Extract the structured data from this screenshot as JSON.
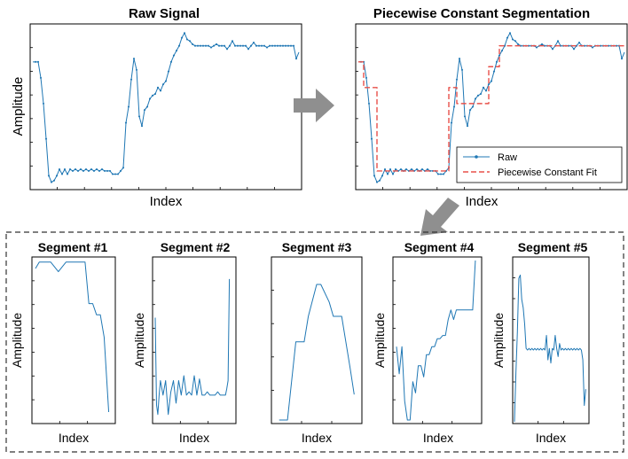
{
  "chart_data": [
    {
      "type": "line",
      "title": "Raw Signal",
      "xlabel": "Index",
      "ylabel": "Amplitude",
      "xlim": [
        0,
        100
      ],
      "ylim": [
        0,
        100
      ],
      "grid": false,
      "series": [
        {
          "marker": "dot",
          "color": "#1f77b4",
          "x": [
            0,
            1,
            2,
            3,
            4,
            5,
            6,
            7,
            8,
            9,
            10,
            11,
            12,
            13,
            14,
            15,
            16,
            17,
            18,
            19,
            20,
            21,
            22,
            23,
            24,
            25,
            26,
            27,
            28,
            29,
            30,
            31,
            32,
            33,
            34,
            35,
            36,
            37,
            38,
            39,
            40,
            41,
            42,
            43,
            44,
            45,
            46,
            47,
            48,
            49,
            50,
            51,
            52,
            53,
            54,
            55,
            56,
            57,
            58,
            59,
            60,
            61,
            62,
            63,
            64,
            65,
            66,
            67,
            68,
            69,
            70,
            71,
            72,
            73,
            74,
            75,
            76,
            77,
            78,
            79,
            80,
            81,
            82,
            83,
            84,
            85,
            86,
            87,
            88,
            89,
            90,
            91,
            92,
            93,
            94,
            95,
            96,
            97,
            98,
            99,
            100
          ],
          "y": [
            78,
            78,
            78,
            68,
            52,
            30,
            7,
            3,
            4,
            7,
            11,
            8,
            11,
            8,
            11,
            10,
            11,
            10,
            11,
            10,
            11,
            10,
            11,
            10,
            11,
            10,
            11,
            10,
            10,
            10,
            8,
            8,
            8,
            10,
            12,
            40,
            50,
            67,
            80,
            73,
            44,
            38,
            48,
            50,
            55,
            57,
            58,
            62,
            60,
            64,
            66,
            72,
            78,
            82,
            85,
            88,
            93,
            96,
            92,
            91,
            89,
            88,
            88,
            88,
            88,
            88,
            88,
            87,
            88,
            89,
            88,
            88,
            88,
            86,
            88,
            91,
            88,
            88,
            88,
            88,
            88,
            86,
            88,
            90,
            88,
            88,
            88,
            88,
            87,
            88,
            88,
            88,
            88,
            88,
            88,
            88,
            88,
            88,
            88,
            80,
            84
          ]
        }
      ]
    },
    {
      "type": "line",
      "title": "Piecewise Constant Segmentation",
      "xlabel": "Index",
      "ylabel": "",
      "xlim": [
        0,
        100
      ],
      "ylim": [
        0,
        100
      ],
      "legend_placement": "bottom-right",
      "series": [
        {
          "name": "Raw",
          "marker": "dot",
          "color": "#1f77b4",
          "x": [
            0,
            1,
            2,
            3,
            4,
            5,
            6,
            7,
            8,
            9,
            10,
            11,
            12,
            13,
            14,
            15,
            16,
            17,
            18,
            19,
            20,
            21,
            22,
            23,
            24,
            25,
            26,
            27,
            28,
            29,
            30,
            31,
            32,
            33,
            34,
            35,
            36,
            37,
            38,
            39,
            40,
            41,
            42,
            43,
            44,
            45,
            46,
            47,
            48,
            49,
            50,
            51,
            52,
            53,
            54,
            55,
            56,
            57,
            58,
            59,
            60,
            61,
            62,
            63,
            64,
            65,
            66,
            67,
            68,
            69,
            70,
            71,
            72,
            73,
            74,
            75,
            76,
            77,
            78,
            79,
            80,
            81,
            82,
            83,
            84,
            85,
            86,
            87,
            88,
            89,
            90,
            91,
            92,
            93,
            94,
            95,
            96,
            97,
            98,
            99,
            100
          ],
          "y": [
            78,
            78,
            78,
            68,
            52,
            30,
            7,
            3,
            4,
            7,
            11,
            8,
            11,
            8,
            11,
            10,
            11,
            10,
            11,
            10,
            11,
            10,
            11,
            10,
            11,
            10,
            11,
            10,
            10,
            10,
            8,
            8,
            8,
            10,
            12,
            40,
            50,
            67,
            80,
            73,
            44,
            38,
            48,
            50,
            55,
            57,
            58,
            62,
            60,
            64,
            66,
            72,
            78,
            82,
            85,
            88,
            93,
            96,
            92,
            91,
            89,
            88,
            88,
            88,
            88,
            88,
            88,
            87,
            88,
            89,
            88,
            88,
            88,
            86,
            88,
            91,
            88,
            88,
            88,
            88,
            88,
            86,
            88,
            90,
            88,
            88,
            88,
            88,
            87,
            88,
            88,
            88,
            88,
            88,
            88,
            88,
            88,
            88,
            88,
            80,
            84
          ]
        },
        {
          "name": "Piecewise Constant Fit",
          "style": "dashed",
          "color": "#e8504a",
          "x": [
            0,
            2,
            2,
            7,
            7,
            34,
            34,
            37,
            37,
            49,
            49,
            53,
            53,
            100
          ],
          "y": [
            78,
            78,
            62,
            62,
            10,
            10,
            62,
            62,
            52,
            52,
            75,
            75,
            88,
            88
          ]
        }
      ]
    },
    {
      "type": "line",
      "title": "Segment #1",
      "xlabel": "Index",
      "ylabel": "Amplitude",
      "xlim": [
        0,
        10
      ],
      "ylim": [
        0,
        100
      ],
      "series": [
        {
          "color": "#1f77b4",
          "x": [
            0,
            0.5,
            1,
            2,
            3,
            4,
            5,
            6,
            6.5,
            7,
            7.5,
            8,
            8.5,
            9,
            9.6
          ],
          "y": [
            95,
            99,
            99,
            99,
            93,
            99,
            99,
            99,
            99,
            73,
            73,
            66,
            66,
            52,
            5
          ]
        }
      ]
    },
    {
      "type": "line",
      "title": "Segment #2",
      "xlabel": "Index",
      "ylabel": "Amplitude",
      "xlim": [
        0,
        30
      ],
      "ylim": [
        0,
        100
      ],
      "series": [
        {
          "color": "#1f77b4",
          "x": [
            0,
            0.5,
            1,
            1.5,
            2,
            3,
            4,
            5,
            6,
            7,
            8,
            9,
            10,
            11,
            12,
            13,
            14,
            15,
            16,
            17,
            18,
            19,
            20,
            21,
            22,
            23,
            24,
            25,
            26,
            27,
            27.5,
            28,
            28.5
          ],
          "y": [
            64,
            10,
            4,
            16,
            25,
            16,
            25,
            4,
            18,
            25,
            11,
            25,
            16,
            28,
            16,
            18,
            16,
            28,
            16,
            26,
            16,
            16,
            18,
            16,
            16,
            16,
            18,
            16,
            16,
            16,
            20,
            25,
            88
          ]
        }
      ]
    },
    {
      "type": "line",
      "title": "Segment #3",
      "xlabel": "Index",
      "ylabel": "",
      "xlim": [
        0,
        10
      ],
      "ylim": [
        0,
        100
      ],
      "series": [
        {
          "color": "#1f77b4",
          "x": [
            0.5,
            1.5,
            2.5,
            3,
            3.5,
            4,
            5,
            5.5,
            6.5,
            7,
            7.5,
            8,
            8.5,
            9,
            9.5
          ],
          "y": [
            0,
            0,
            49,
            49,
            49,
            65,
            85,
            85,
            74,
            65,
            65,
            65,
            49,
            33,
            16
          ]
        }
      ]
    },
    {
      "type": "line",
      "title": "Segment #4",
      "xlabel": "Index",
      "ylabel": "Amplitude",
      "xlim": [
        0,
        30
      ],
      "ylim": [
        0,
        100
      ],
      "series": [
        {
          "color": "#1f77b4",
          "x": [
            0,
            1,
            2,
            3,
            4,
            5,
            6,
            7,
            8,
            9,
            10,
            11,
            12,
            13,
            14,
            15,
            16,
            17,
            18,
            19,
            20,
            21,
            22,
            23,
            24,
            25,
            26,
            27,
            28,
            29
          ],
          "y": [
            46,
            29,
            46,
            12,
            0,
            0,
            24,
            17,
            34,
            34,
            27,
            41,
            41,
            46,
            46,
            51,
            51,
            53,
            53,
            63,
            69,
            63,
            69,
            69,
            69,
            69,
            69,
            69,
            69,
            100
          ]
        }
      ]
    },
    {
      "type": "line",
      "title": "Segment #5",
      "xlabel": "Index",
      "ylabel": "Amplitude",
      "xlim": [
        0,
        50
      ],
      "ylim": [
        0,
        100
      ],
      "series": [
        {
          "color": "#1f77b4",
          "x": [
            0,
            1,
            2,
            3,
            4,
            5,
            6,
            7,
            8,
            9,
            10,
            11,
            12,
            13,
            14,
            15,
            16,
            17,
            18,
            19,
            20,
            21,
            22,
            23,
            24,
            25,
            26,
            27,
            28,
            29,
            30,
            31,
            32,
            33,
            34,
            35,
            36,
            37,
            38,
            39,
            40,
            41,
            42,
            43,
            44,
            45,
            46,
            47,
            48,
            49
          ],
          "y": [
            0,
            30,
            55,
            88,
            90,
            75,
            70,
            60,
            45,
            44,
            45,
            44,
            45,
            44,
            45,
            44,
            45,
            44,
            45,
            44,
            45,
            44,
            53,
            38,
            45,
            36,
            45,
            44,
            53,
            45,
            40,
            48,
            44,
            45,
            44,
            45,
            44,
            45,
            44,
            45,
            44,
            45,
            44,
            45,
            44,
            45,
            44,
            38,
            10,
            20
          ]
        }
      ]
    }
  ]
}
